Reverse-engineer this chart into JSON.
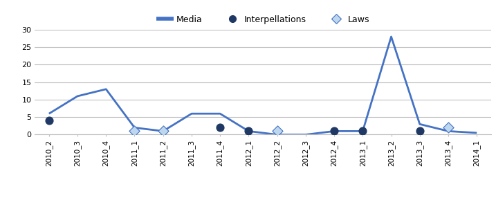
{
  "categories": [
    "2010_2",
    "2010_3",
    "2010_4",
    "2011_1",
    "2011_2",
    "2011_3",
    "2011_4",
    "2012_1",
    "2012_2",
    "2012_3",
    "2012_4",
    "2013_1",
    "2013_2",
    "2013_3",
    "2013_4",
    "2014_1"
  ],
  "media": [
    6,
    11,
    13,
    2,
    1,
    6,
    6,
    1,
    0,
    0,
    1,
    1,
    28,
    3,
    1,
    0.5
  ],
  "interpellations": [
    4,
    null,
    null,
    null,
    null,
    null,
    2,
    1,
    null,
    null,
    1,
    1,
    null,
    1,
    null,
    null
  ],
  "laws": [
    null,
    null,
    null,
    1,
    1,
    null,
    null,
    null,
    1,
    null,
    null,
    null,
    null,
    null,
    2,
    null
  ],
  "media_color": "#4472C4",
  "interpellations_color": "#1F3864",
  "laws_color": "#BDD7EE",
  "laws_edge_color": "#4472C4",
  "ylim": [
    0,
    30
  ],
  "yticks": [
    0,
    5,
    10,
    15,
    20,
    25,
    30
  ],
  "background_color": "#FFFFFF",
  "grid_color": "#BFBFBF",
  "legend_labels": [
    "Media",
    "Interpellations",
    "Laws"
  ],
  "figsize": [
    7.17,
    2.86
  ],
  "dpi": 100
}
